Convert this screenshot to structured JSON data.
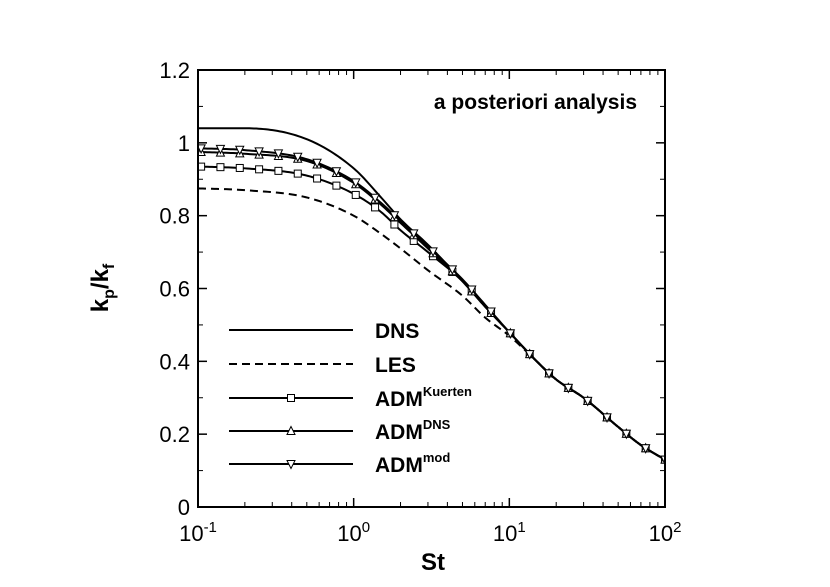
{
  "chart_data": {
    "type": "line",
    "title": "",
    "annotation": "a posteriori analysis",
    "xlabel": "St",
    "ylabel_main": "k",
    "ylabel_sub1": "p",
    "ylabel_slash": "/k",
    "ylabel_sub2": "f",
    "xscale": "log",
    "xlim": [
      0.1,
      100
    ],
    "ylim": [
      0,
      1.2
    ],
    "grid": false,
    "legend_placement": "lower-left",
    "x_ticks": [
      {
        "base": "10",
        "exp": "-1",
        "value": 0.1
      },
      {
        "base": "10",
        "exp": "0",
        "value": 1
      },
      {
        "base": "10",
        "exp": "1",
        "value": 10
      },
      {
        "base": "10",
        "exp": "2",
        "value": 100
      }
    ],
    "y_ticks": [
      {
        "label": "0",
        "value": 0
      },
      {
        "label": "0.2",
        "value": 0.2
      },
      {
        "label": "0.4",
        "value": 0.4
      },
      {
        "label": "0.6",
        "value": 0.6
      },
      {
        "label": "0.8",
        "value": 0.8
      },
      {
        "label": "1",
        "value": 1.0
      },
      {
        "label": "1.2",
        "value": 1.2
      }
    ],
    "series": [
      {
        "name": "DNS",
        "name_sup": "",
        "dash": "solid",
        "marker": "none",
        "x": [
          0.1,
          0.2,
          0.5,
          1,
          1.5,
          2,
          3,
          5,
          7,
          10,
          15,
          20,
          30,
          50,
          70,
          100
        ],
        "y": [
          1.04,
          1.04,
          1.01,
          0.93,
          0.85,
          0.79,
          0.72,
          0.62,
          0.55,
          0.48,
          0.4,
          0.35,
          0.3,
          0.22,
          0.17,
          0.13
        ]
      },
      {
        "name": "LES",
        "name_sup": "",
        "dash": "dashed",
        "marker": "none",
        "x": [
          0.1,
          0.2,
          0.5,
          1,
          1.5,
          2,
          3,
          5,
          7,
          10,
          15,
          20,
          30,
          50,
          70,
          100
        ],
        "y": [
          0.875,
          0.87,
          0.85,
          0.8,
          0.75,
          0.71,
          0.65,
          0.58,
          0.52,
          0.47,
          0.4,
          0.35,
          0.3,
          0.22,
          0.17,
          0.13
        ]
      },
      {
        "name": "ADM",
        "name_sup": "Kuerten",
        "dash": "solid",
        "marker": "square",
        "x": [
          0.1,
          0.2,
          0.5,
          1,
          1.5,
          2,
          3,
          5,
          7,
          10,
          15,
          20,
          30,
          50,
          70,
          100
        ],
        "y": [
          0.935,
          0.93,
          0.91,
          0.86,
          0.81,
          0.76,
          0.7,
          0.62,
          0.55,
          0.48,
          0.4,
          0.35,
          0.3,
          0.22,
          0.17,
          0.13
        ]
      },
      {
        "name": "ADM",
        "name_sup": "DNS",
        "dash": "solid",
        "marker": "triangle-up",
        "x": [
          0.1,
          0.2,
          0.5,
          1,
          1.5,
          2,
          3,
          5,
          7,
          10,
          15,
          20,
          30,
          50,
          70,
          100
        ],
        "y": [
          0.975,
          0.97,
          0.95,
          0.89,
          0.83,
          0.78,
          0.71,
          0.62,
          0.55,
          0.48,
          0.4,
          0.35,
          0.3,
          0.22,
          0.17,
          0.13
        ]
      },
      {
        "name": "ADM",
        "name_sup": "mod",
        "dash": "solid",
        "marker": "triangle-down",
        "x": [
          0.1,
          0.2,
          0.5,
          1,
          1.5,
          2,
          3,
          5,
          7,
          10,
          15,
          20,
          30,
          50,
          70,
          100
        ],
        "y": [
          0.985,
          0.98,
          0.955,
          0.895,
          0.835,
          0.785,
          0.715,
          0.625,
          0.555,
          0.48,
          0.4,
          0.35,
          0.3,
          0.22,
          0.17,
          0.13
        ]
      }
    ]
  }
}
